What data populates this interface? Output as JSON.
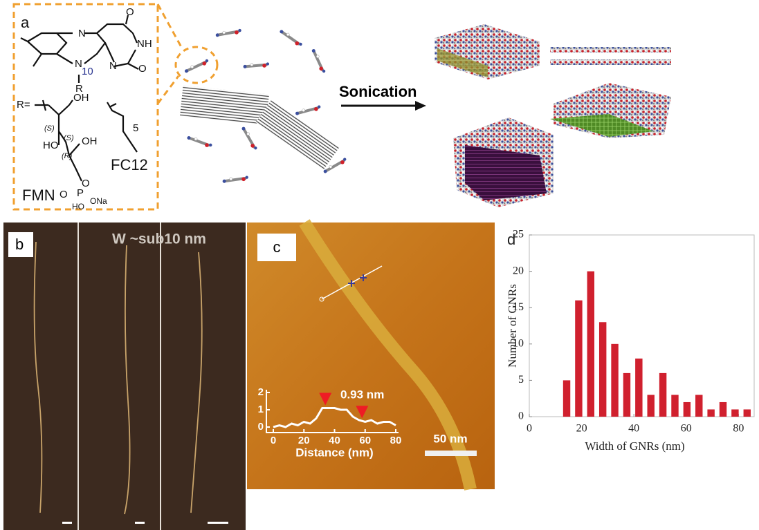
{
  "panel_a": {
    "label": "a",
    "structure_labels": [
      "N",
      "O",
      "NH",
      "N",
      "10",
      "N",
      "O",
      "R",
      "R=",
      "OH",
      "(S)",
      "HO",
      "(S)",
      "OH",
      "(R)",
      "O",
      "O",
      "P",
      "ONa",
      "HO",
      "5"
    ],
    "names": [
      "FMN",
      "FC12"
    ],
    "process_label": "Sonication"
  },
  "panel_b": {
    "label": "b",
    "caption": "W ~sub10 nm"
  },
  "panel_c": {
    "label": "c",
    "scale_bar": "50 nm"
  },
  "chart_data": [
    {
      "type": "line",
      "panel": "c",
      "x_label": "Distance (nm)",
      "annotation": "0.93 nm",
      "x": [
        0,
        4,
        8,
        12,
        16,
        20,
        24,
        28,
        32,
        36,
        40,
        44,
        48,
        52,
        56,
        60,
        64,
        68,
        72,
        76,
        80
      ],
      "values": [
        0,
        0.1,
        0,
        0.2,
        0.1,
        0.3,
        0.2,
        0.5,
        1.1,
        1.1,
        1.1,
        1.0,
        1.0,
        0.6,
        0.4,
        0.3,
        0.4,
        0.2,
        0.3,
        0.3,
        0.1
      ],
      "color": "#ffffff",
      "markers_x": [
        34,
        58
      ],
      "marker_color": "#ee1c24",
      "xlim": [
        0,
        80
      ],
      "ylim": [
        0,
        2
      ],
      "xticks": [
        0,
        20,
        40,
        60,
        80
      ],
      "yticks": [
        0,
        1,
        2
      ]
    },
    {
      "type": "histogram",
      "panel": "d",
      "label": "d",
      "x_label": "Width of GNRs (nm)",
      "y_label": "Number of GNRs",
      "bins": [
        12,
        16.6,
        21.2,
        25.8,
        30.4,
        35,
        39.6,
        44.2,
        48.8,
        53.4,
        58,
        62.6,
        67.2,
        71.8,
        76.4,
        81,
        85.6
      ],
      "values": [
        5,
        16,
        20,
        13,
        10,
        6,
        8,
        3,
        6,
        3,
        2,
        3,
        1,
        2,
        1,
        1
      ],
      "color": "#d0202e",
      "xlim": [
        0,
        86
      ],
      "ylim": [
        0,
        25
      ],
      "xticks": [
        0,
        20,
        40,
        60,
        80
      ],
      "yticks": [
        0,
        5,
        10,
        15,
        20,
        25
      ]
    }
  ]
}
